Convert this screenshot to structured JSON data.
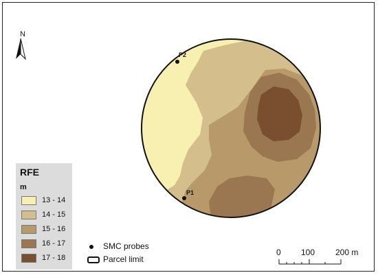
{
  "north_label": "N",
  "legend": {
    "title": "RFE",
    "unit": "m",
    "classes": [
      {
        "label": "13 - 14",
        "color": "#f7f0b0"
      },
      {
        "label": "14 - 15",
        "color": "#d4bf8c"
      },
      {
        "label": "15 - 16",
        "color": "#b89a6a"
      },
      {
        "label": "16 - 17",
        "color": "#9a7750"
      },
      {
        "label": "17 - 18",
        "color": "#7a4f30"
      }
    ]
  },
  "probes": [
    {
      "label": "P1"
    },
    {
      "label": "P2"
    }
  ],
  "aux_legend": {
    "probe_label": "SMC probes",
    "parcel_label": "Parcel limit"
  },
  "scale_bar": {
    "labels": [
      "0",
      "100",
      "200 m"
    ]
  }
}
